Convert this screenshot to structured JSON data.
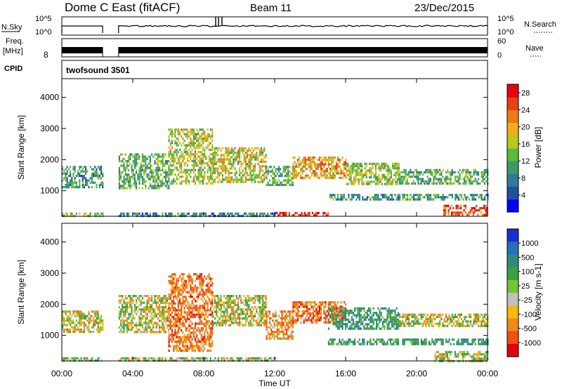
{
  "header": {
    "title": "Dome C East (fitACF)",
    "beam": "Beam 11",
    "date": "23/Dec/2015"
  },
  "top_panels": {
    "nsky_label": "N.Sky",
    "nsky_ticks": [
      "10^5",
      "10^0"
    ],
    "nsearch_label": "N.Search",
    "nsearch_ticks": [
      "10^5",
      "10^0"
    ],
    "freq_label_1": "Freq.",
    "freq_label_2": "[MHz]",
    "freq_ticks": [
      "8"
    ],
    "nave_label": "Nave",
    "nave_ticks": [
      "60",
      "0"
    ],
    "cpid_label": "CPID",
    "cpid_value": "twofsound 3501"
  },
  "colors": {
    "power_scale": [
      "#0000ff",
      "#1f4fa0",
      "#2e7a9a",
      "#3a9a6a",
      "#5aba3a",
      "#b8c81e",
      "#f0b018",
      "#f07a18",
      "#e84010",
      "#e80010"
    ],
    "velocity_scale": [
      "#1b2fd0",
      "#2570b8",
      "#2f8a7a",
      "#3ca040",
      "#70c832",
      "#c0c0c0",
      "#f8b810",
      "#f08a18",
      "#f05010",
      "#e00010"
    ]
  },
  "chart_data": [
    {
      "type": "heatmap",
      "name": "power",
      "xlabel": "",
      "ylabel": "Slant Range [km]",
      "xlim": [
        0,
        24
      ],
      "ylim": [
        180,
        4600
      ],
      "yticks": [
        "1000",
        "2000",
        "3000",
        "4000"
      ],
      "xticks": [
        "00:00",
        "04:00",
        "08:00",
        "12:00",
        "16:00",
        "20:00",
        "00:00"
      ],
      "colorbar_label": "Power [dB]",
      "colorbar_ticks": [
        "4",
        "8",
        "12",
        "16",
        "20",
        "24",
        "28"
      ],
      "colorbar_range": [
        0,
        30
      ],
      "data_gap_hours": [
        [
          2.3,
          3.2
        ]
      ],
      "regions": [
        {
          "t0": 0.0,
          "t1": 2.3,
          "r0": 1100,
          "r1": 1800,
          "level": 10
        },
        {
          "t0": 0.0,
          "t1": 2.3,
          "r0": 200,
          "r1": 300,
          "level": 14
        },
        {
          "t0": 3.2,
          "t1": 6.0,
          "r0": 1100,
          "r1": 2200,
          "level": 12
        },
        {
          "t0": 6.0,
          "t1": 8.5,
          "r0": 1200,
          "r1": 3000,
          "level": 16
        },
        {
          "t0": 8.5,
          "t1": 11.5,
          "r0": 1300,
          "r1": 2400,
          "level": 17
        },
        {
          "t0": 11.5,
          "t1": 13.0,
          "r0": 1200,
          "r1": 1800,
          "level": 12
        },
        {
          "t0": 13.0,
          "t1": 16.0,
          "r0": 1400,
          "r1": 2100,
          "level": 20
        },
        {
          "t0": 16.0,
          "t1": 19.0,
          "r0": 1200,
          "r1": 1900,
          "level": 15
        },
        {
          "t0": 19.0,
          "t1": 24.0,
          "r0": 1200,
          "r1": 1700,
          "level": 12
        },
        {
          "t0": 12.0,
          "t1": 15.0,
          "r0": 200,
          "r1": 320,
          "level": 28
        },
        {
          "t0": 21.5,
          "t1": 24.0,
          "r0": 200,
          "r1": 550,
          "level": 26
        },
        {
          "t0": 3.2,
          "t1": 12.0,
          "r0": 200,
          "r1": 300,
          "level": 8
        },
        {
          "t0": 15.0,
          "t1": 24.0,
          "r0": 700,
          "r1": 900,
          "level": 10
        }
      ]
    },
    {
      "type": "heatmap",
      "name": "velocity",
      "xlabel": "Time UT",
      "ylabel": "Slant Range [km]",
      "xlim": [
        0,
        24
      ],
      "ylim": [
        180,
        4600
      ],
      "yticks": [
        "1000",
        "2000",
        "3000",
        "4000"
      ],
      "xticks": [
        "00:00",
        "04:00",
        "08:00",
        "12:00",
        "16:00",
        "20:00",
        "00:00"
      ],
      "colorbar_label": "Velocity [m s-1]",
      "colorbar_ticks": [
        "1000",
        "500",
        "100",
        "25",
        "-25",
        "-100",
        "-500",
        "-1000"
      ],
      "data_gap_hours": [
        [
          2.3,
          3.2
        ]
      ],
      "regions": [
        {
          "t0": 0.0,
          "t1": 2.3,
          "r0": 1100,
          "r1": 1800,
          "level": 0
        },
        {
          "t0": 0.0,
          "t1": 2.3,
          "r0": 200,
          "r1": 300,
          "level": 80
        },
        {
          "t0": 3.2,
          "t1": 6.0,
          "r0": 1100,
          "r1": 2300,
          "level": 0
        },
        {
          "t0": 6.0,
          "t1": 8.5,
          "r0": 500,
          "r1": 3000,
          "level": -300
        },
        {
          "t0": 8.5,
          "t1": 11.5,
          "r0": 1300,
          "r1": 2300,
          "level": 0
        },
        {
          "t0": 11.5,
          "t1": 13.0,
          "r0": 900,
          "r1": 1800,
          "level": -200
        },
        {
          "t0": 13.0,
          "t1": 16.0,
          "r0": 1400,
          "r1": 2100,
          "level": -300
        },
        {
          "t0": 15.0,
          "t1": 19.0,
          "r0": 1200,
          "r1": 1900,
          "level": 300
        },
        {
          "t0": 19.0,
          "t1": 24.0,
          "r0": 1300,
          "r1": 1700,
          "level": 0
        },
        {
          "t0": 15.0,
          "t1": 24.0,
          "r0": 700,
          "r1": 900,
          "level": 300
        },
        {
          "t0": 21.0,
          "t1": 24.0,
          "r0": 200,
          "r1": 500,
          "level": 50
        },
        {
          "t0": 3.2,
          "t1": 12.0,
          "r0": 200,
          "r1": 300,
          "level": 60
        }
      ]
    }
  ]
}
